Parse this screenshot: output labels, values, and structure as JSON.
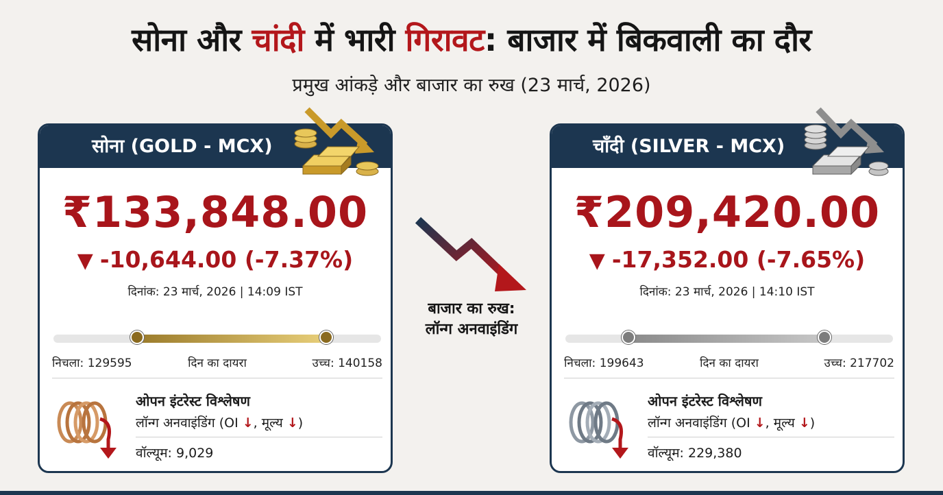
{
  "headline": {
    "part1": "सोना और ",
    "part2": "चांदी",
    "part3": " में भारी ",
    "part4": "गिरावट",
    "part5": ": बाजार में बिकवाली का दौर"
  },
  "subheadline": "प्रमुख आंकड़े और बाजार का रुख (23 मार्च, 2026)",
  "colors": {
    "navy": "#1c3650",
    "red": "#a8151b",
    "gold": "#d4b04a",
    "silver": "#9a9a9a"
  },
  "gold_card": {
    "title": "सोना (GOLD - MCX)",
    "price": "₹133,848.00",
    "change_icon": "▼",
    "change": "-10,644.00 (-7.37%)",
    "date": "दिनांक: 23 मार्च, 2026 | 14:09 IST",
    "range": {
      "low_label": "निचला: 129595",
      "mid_label": "दिन का दायरा",
      "high_label": "उच्च: 140158"
    },
    "oi": {
      "title": "ओपन इंटरेस्ट विश्लेषण",
      "sub_prefix": "लॉन्ग अनवाइंडिंग (OI ",
      "arrow1": "↓",
      "sub_mid": ", मूल्य ",
      "arrow2": "↓",
      "sub_suffix": ")",
      "volume": "वॉल्यूम: 9,029"
    }
  },
  "silver_card": {
    "title": "चाँदी (SILVER - MCX)",
    "price": "₹209,420.00",
    "change_icon": "▼",
    "change": "-17,352.00 (-7.65%)",
    "date": "दिनांक: 23 मार्च, 2026 | 14:10 IST",
    "range": {
      "low_label": "निचला: 199643",
      "mid_label": "दिन का दायरा",
      "high_label": "उच्च: 217702"
    },
    "oi": {
      "title": "ओपन इंटरेस्ट विश्लेषण",
      "sub_prefix": "लॉन्ग अनवाइंडिंग (OI ",
      "arrow1": "↓",
      "sub_mid": ", मूल्य ",
      "arrow2": "↓",
      "sub_suffix": ")",
      "volume": "वॉल्यूम: 229,380"
    }
  },
  "center": {
    "icon": "trend-down-arrow-icon",
    "label_line1": "बाजार का रुख:",
    "label_line2": "लॉन्ग अनवाइंडिंग"
  }
}
